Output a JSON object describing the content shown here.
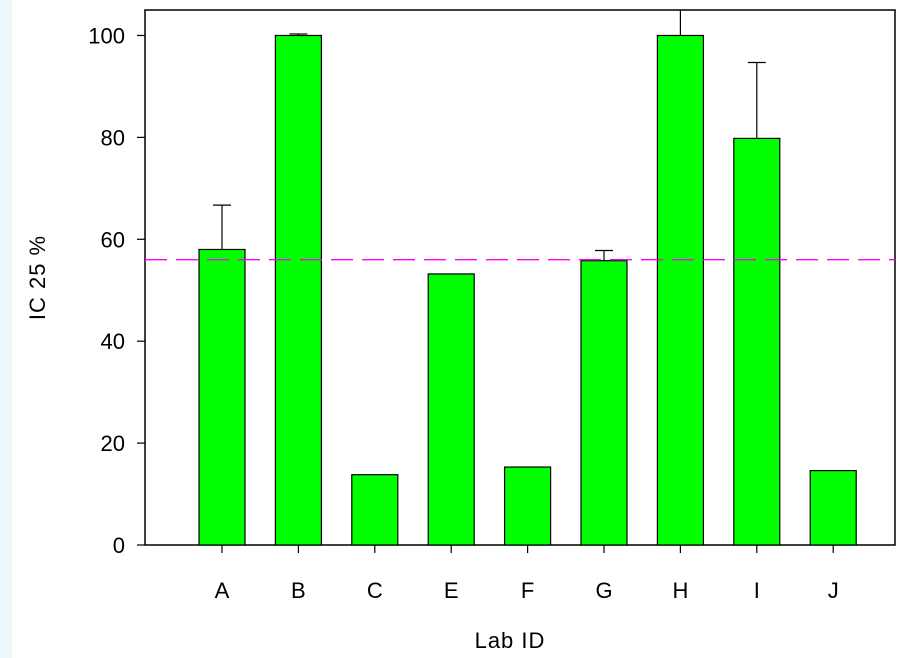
{
  "chart_data": {
    "type": "bar",
    "title": "",
    "xlabel": "Lab ID",
    "ylabel": "IC 25 %",
    "categories": [
      "A",
      "B",
      "C",
      "E",
      "F",
      "G",
      "H",
      "I",
      "J"
    ],
    "values": [
      58,
      100,
      13.8,
      53.2,
      15.3,
      55.8,
      100,
      79.8,
      14.6
    ],
    "error_upper": [
      66.7,
      100.3,
      null,
      null,
      null,
      57.8,
      105.2,
      94.7,
      null
    ],
    "ylim": [
      0,
      105
    ],
    "yticks": [
      0,
      20,
      40,
      60,
      80,
      100
    ],
    "reference_line": {
      "y": 56,
      "color": "#ff00ff",
      "style": "dashed"
    },
    "bar_color": "#00ff00",
    "grid": false
  }
}
